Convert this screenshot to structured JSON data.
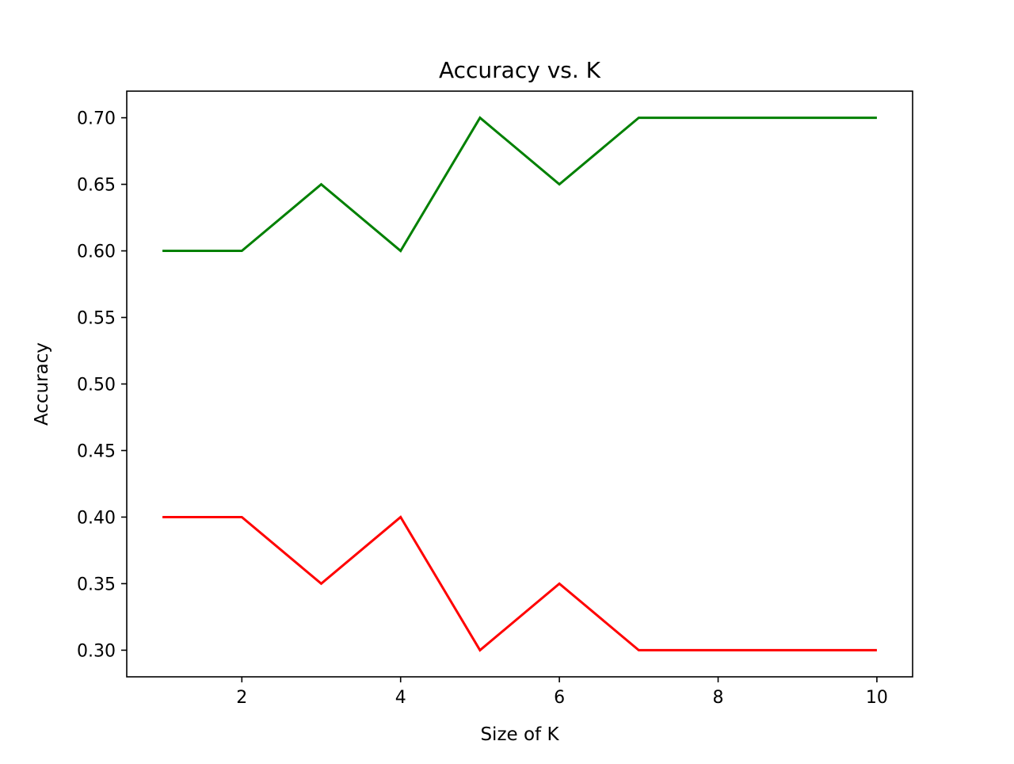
{
  "chart_data": {
    "type": "line",
    "title": "Accuracy vs. K",
    "xlabel": "Size of K",
    "ylabel": "Accuracy",
    "x": [
      1,
      2,
      3,
      4,
      5,
      6,
      7,
      8,
      9,
      10
    ],
    "series": [
      {
        "color": "#008000",
        "values": [
          0.6,
          0.6,
          0.65,
          0.6,
          0.7,
          0.65,
          0.7,
          0.7,
          0.7,
          0.7
        ]
      },
      {
        "color": "#ff0000",
        "values": [
          0.4,
          0.4,
          0.35,
          0.4,
          0.3,
          0.35,
          0.3,
          0.3,
          0.3,
          0.3
        ]
      }
    ],
    "xlim": [
      0.55,
      10.45
    ],
    "ylim": [
      0.28,
      0.72
    ],
    "xticks": [
      2,
      4,
      6,
      8,
      10
    ],
    "xtick_labels": [
      "2",
      "4",
      "6",
      "8",
      "10"
    ],
    "yticks": [
      0.3,
      0.35,
      0.4,
      0.45,
      0.5,
      0.55,
      0.6,
      0.65,
      0.7
    ],
    "ytick_labels": [
      "0.30",
      "0.35",
      "0.40",
      "0.45",
      "0.50",
      "0.55",
      "0.60",
      "0.65",
      "0.70"
    ],
    "grid": false,
    "legend": false
  }
}
